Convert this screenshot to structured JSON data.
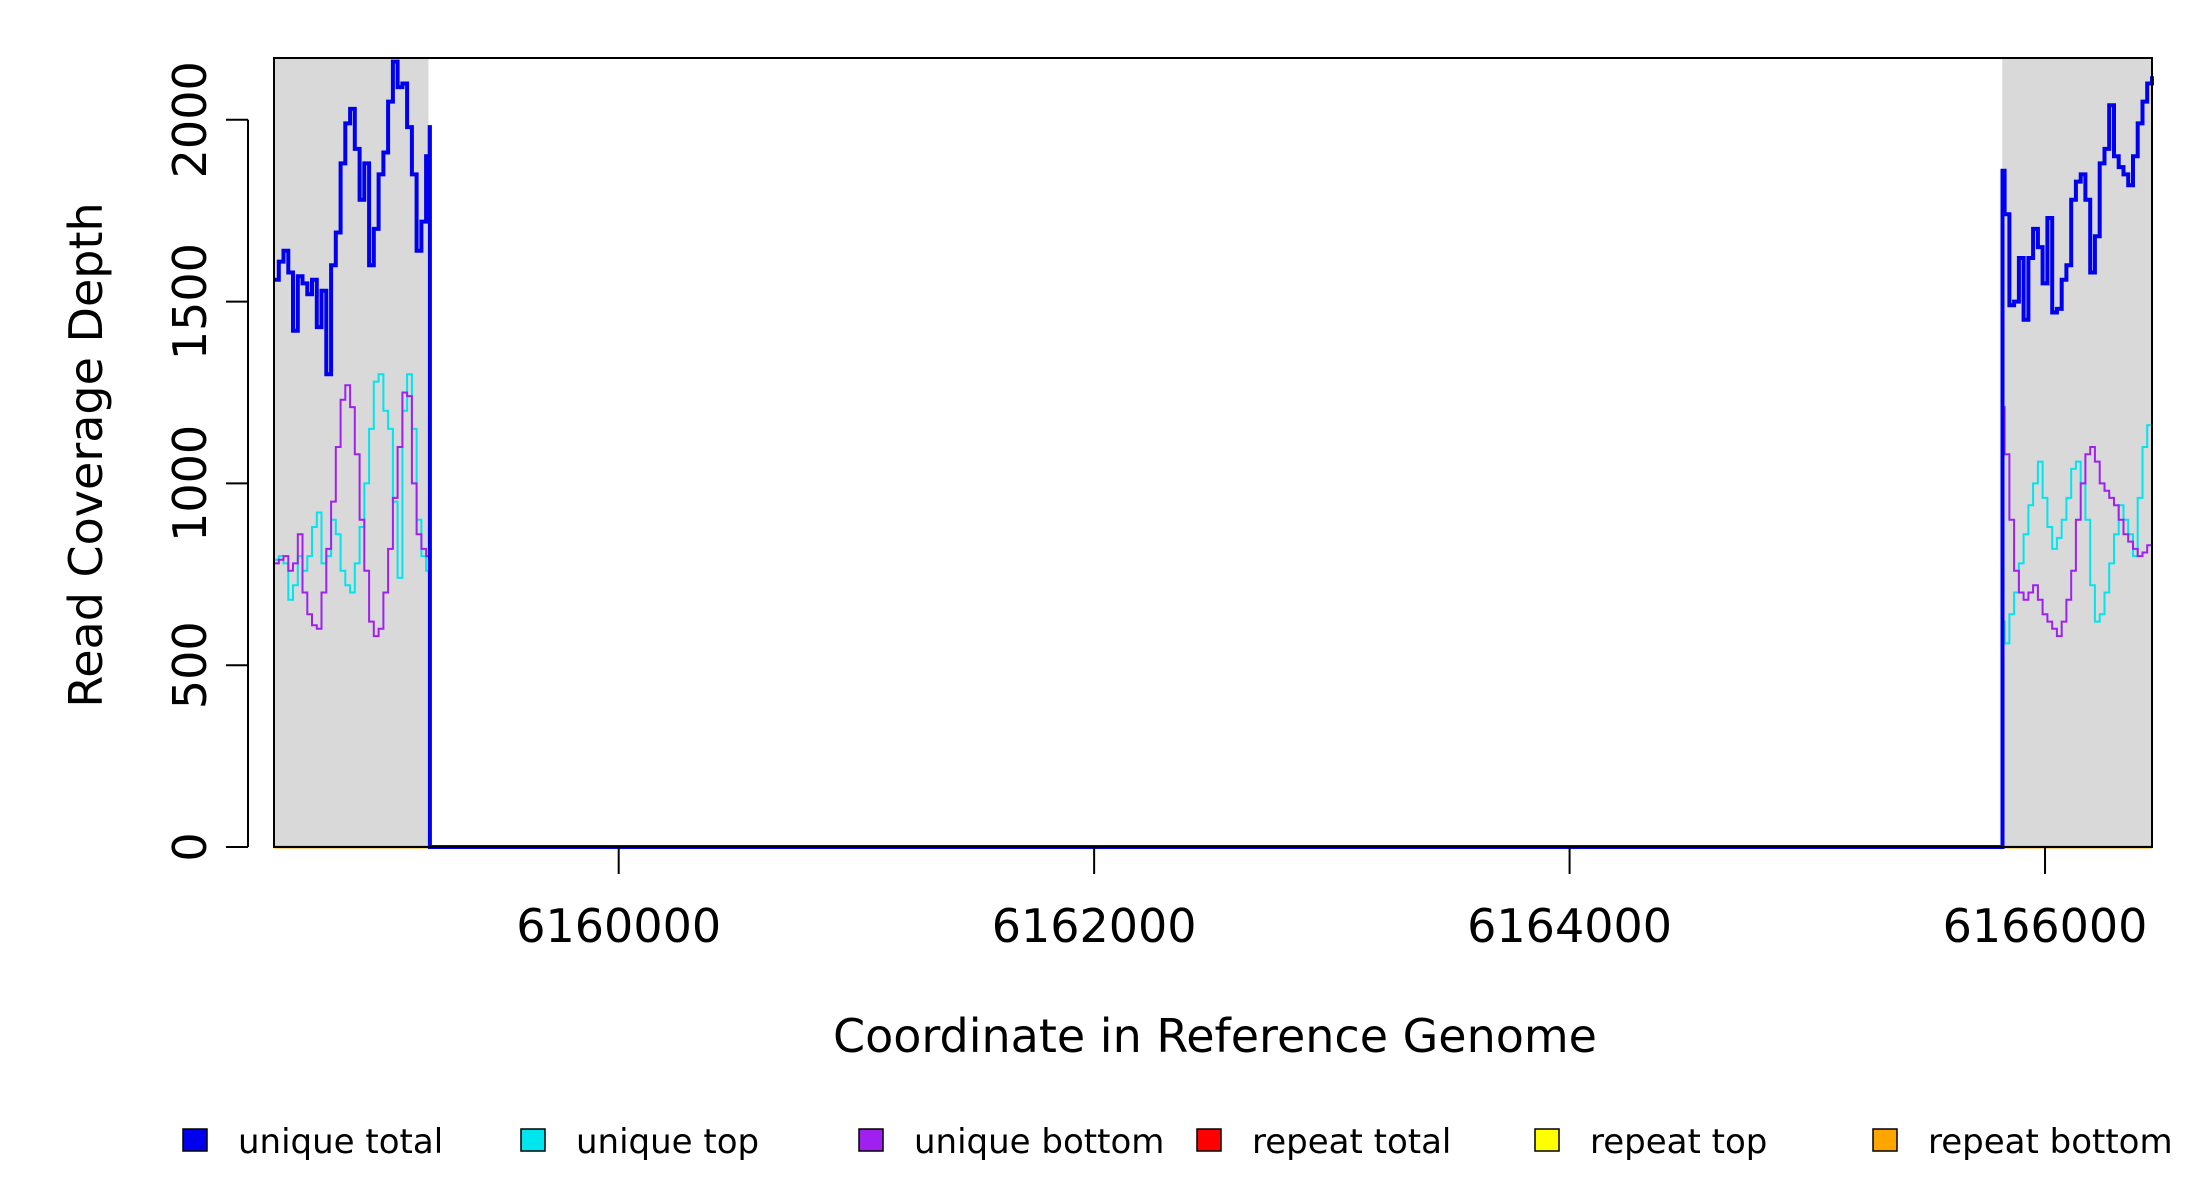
{
  "chart_data": {
    "type": "line",
    "xlabel": "Coordinate in Reference Genome",
    "ylabel": "Read Coverage Depth",
    "xlim": [
      6158550,
      6166450
    ],
    "ylim": [
      0,
      2170
    ],
    "x_ticks": [
      6160000,
      6162000,
      6164000,
      6166000
    ],
    "x_tick_labels": [
      "6160000",
      "6162000",
      "6164000",
      "6166000"
    ],
    "y_ticks": [
      0,
      500,
      1000,
      1500,
      2000
    ],
    "y_tick_labels": [
      "0",
      "500",
      "1000",
      "1500",
      "2000"
    ],
    "shaded_regions": [
      {
        "start": 6158550,
        "end": 6159200,
        "color": "#d9d9d9"
      },
      {
        "start": 6165820,
        "end": 6166450,
        "color": "#d9d9d9"
      }
    ],
    "legend_position": "bottom",
    "series": [
      {
        "name": "unique total",
        "color": "#0000ee",
        "width": 4,
        "x": [
          6158550,
          6158570,
          6158590,
          6158610,
          6158630,
          6158650,
          6158670,
          6158690,
          6158710,
          6158730,
          6158750,
          6158770,
          6158790,
          6158810,
          6158830,
          6158850,
          6158870,
          6158890,
          6158910,
          6158930,
          6158950,
          6158970,
          6158990,
          6159010,
          6159030,
          6159050,
          6159070,
          6159090,
          6159110,
          6159130,
          6159150,
          6159170,
          6159190,
          6159205,
          6159206,
          6165820,
          6165821,
          6165830,
          6165850,
          6165870,
          6165890,
          6165910,
          6165930,
          6165950,
          6165970,
          6165990,
          6166010,
          6166030,
          6166050,
          6166070,
          6166090,
          6166110,
          6166130,
          6166150,
          6166170,
          6166190,
          6166210,
          6166230,
          6166250,
          6166270,
          6166290,
          6166310,
          6166330,
          6166350,
          6166370,
          6166390,
          6166410,
          6166430,
          6166450
        ],
        "y": [
          1560,
          1610,
          1640,
          1580,
          1420,
          1570,
          1550,
          1520,
          1560,
          1430,
          1530,
          1300,
          1600,
          1690,
          1880,
          1990,
          2030,
          1920,
          1780,
          1880,
          1600,
          1700,
          1850,
          1910,
          2050,
          2160,
          2090,
          2100,
          1980,
          1850,
          1640,
          1720,
          1900,
          1980,
          0,
          0,
          1860,
          1740,
          1490,
          1500,
          1620,
          1450,
          1620,
          1700,
          1650,
          1550,
          1730,
          1470,
          1480,
          1560,
          1600,
          1780,
          1830,
          1850,
          1780,
          1580,
          1680,
          1880,
          1920,
          2040,
          1900,
          1870,
          1850,
          1820,
          1900,
          1990,
          2050,
          2100,
          2120
        ]
      },
      {
        "name": "unique top",
        "color": "#00e5ee",
        "width": 2,
        "x": [
          6158550,
          6158570,
          6158590,
          6158610,
          6158630,
          6158650,
          6158670,
          6158690,
          6158710,
          6158730,
          6158750,
          6158770,
          6158790,
          6158810,
          6158830,
          6158850,
          6158870,
          6158890,
          6158910,
          6158930,
          6158950,
          6158970,
          6158990,
          6159010,
          6159030,
          6159050,
          6159070,
          6159090,
          6159110,
          6159130,
          6159150,
          6159170,
          6159190,
          6159205,
          6159206,
          6165820,
          6165821,
          6165830,
          6165850,
          6165870,
          6165890,
          6165910,
          6165930,
          6165950,
          6165970,
          6165990,
          6166010,
          6166030,
          6166050,
          6166070,
          6166090,
          6166110,
          6166130,
          6166150,
          6166170,
          6166190,
          6166210,
          6166230,
          6166250,
          6166270,
          6166290,
          6166310,
          6166330,
          6166350,
          6166370,
          6166390,
          6166410,
          6166430,
          6166450
        ],
        "y": [
          790,
          800,
          780,
          680,
          720,
          800,
          760,
          800,
          880,
          920,
          780,
          800,
          900,
          860,
          760,
          720,
          700,
          780,
          880,
          1000,
          1150,
          1280,
          1300,
          1200,
          1150,
          950,
          740,
          1200,
          1300,
          1150,
          900,
          800,
          760,
          740,
          0,
          0,
          620,
          560,
          640,
          700,
          780,
          860,
          940,
          1000,
          1060,
          960,
          880,
          820,
          850,
          900,
          960,
          1040,
          1060,
          1000,
          900,
          720,
          620,
          640,
          700,
          780,
          860,
          940,
          900,
          860,
          800,
          960,
          1100,
          1160,
          1190
        ]
      },
      {
        "name": "unique bottom",
        "color": "#a020f0",
        "width": 2,
        "x": [
          6158550,
          6158570,
          6158590,
          6158610,
          6158630,
          6158650,
          6158670,
          6158690,
          6158710,
          6158730,
          6158750,
          6158770,
          6158790,
          6158810,
          6158830,
          6158850,
          6158870,
          6158890,
          6158910,
          6158930,
          6158950,
          6158970,
          6158990,
          6159010,
          6159030,
          6159050,
          6159070,
          6159090,
          6159110,
          6159130,
          6159150,
          6159170,
          6159190,
          6159205,
          6159206,
          6165820,
          6165821,
          6165830,
          6165850,
          6165870,
          6165890,
          6165910,
          6165930,
          6165950,
          6165970,
          6165990,
          6166010,
          6166030,
          6166050,
          6166070,
          6166090,
          6166110,
          6166130,
          6166150,
          6166170,
          6166190,
          6166210,
          6166230,
          6166250,
          6166270,
          6166290,
          6166310,
          6166330,
          6166350,
          6166370,
          6166390,
          6166410,
          6166430,
          6166450
        ],
        "y": [
          780,
          790,
          800,
          760,
          780,
          860,
          700,
          640,
          610,
          600,
          700,
          820,
          950,
          1100,
          1230,
          1270,
          1210,
          1080,
          900,
          760,
          620,
          580,
          600,
          700,
          820,
          960,
          1100,
          1250,
          1240,
          1000,
          860,
          820,
          800,
          790,
          0,
          0,
          1210,
          1080,
          900,
          760,
          700,
          680,
          700,
          720,
          680,
          640,
          620,
          600,
          580,
          620,
          680,
          760,
          900,
          1000,
          1080,
          1100,
          1060,
          1000,
          980,
          960,
          940,
          900,
          860,
          840,
          820,
          800,
          810,
          830,
          850
        ]
      },
      {
        "name": "repeat total",
        "color": "#ff0000",
        "width": 3,
        "x": [
          6158550,
          6166450
        ],
        "y": [
          0,
          0
        ]
      },
      {
        "name": "repeat top",
        "color": "#ffff00",
        "width": 3,
        "x": [
          6158550,
          6166450
        ],
        "y": [
          0,
          0
        ]
      },
      {
        "name": "repeat bottom",
        "color": "#ffa500",
        "width": 3,
        "x": [
          6158550,
          6166450
        ],
        "y": [
          0,
          0
        ]
      }
    ]
  }
}
